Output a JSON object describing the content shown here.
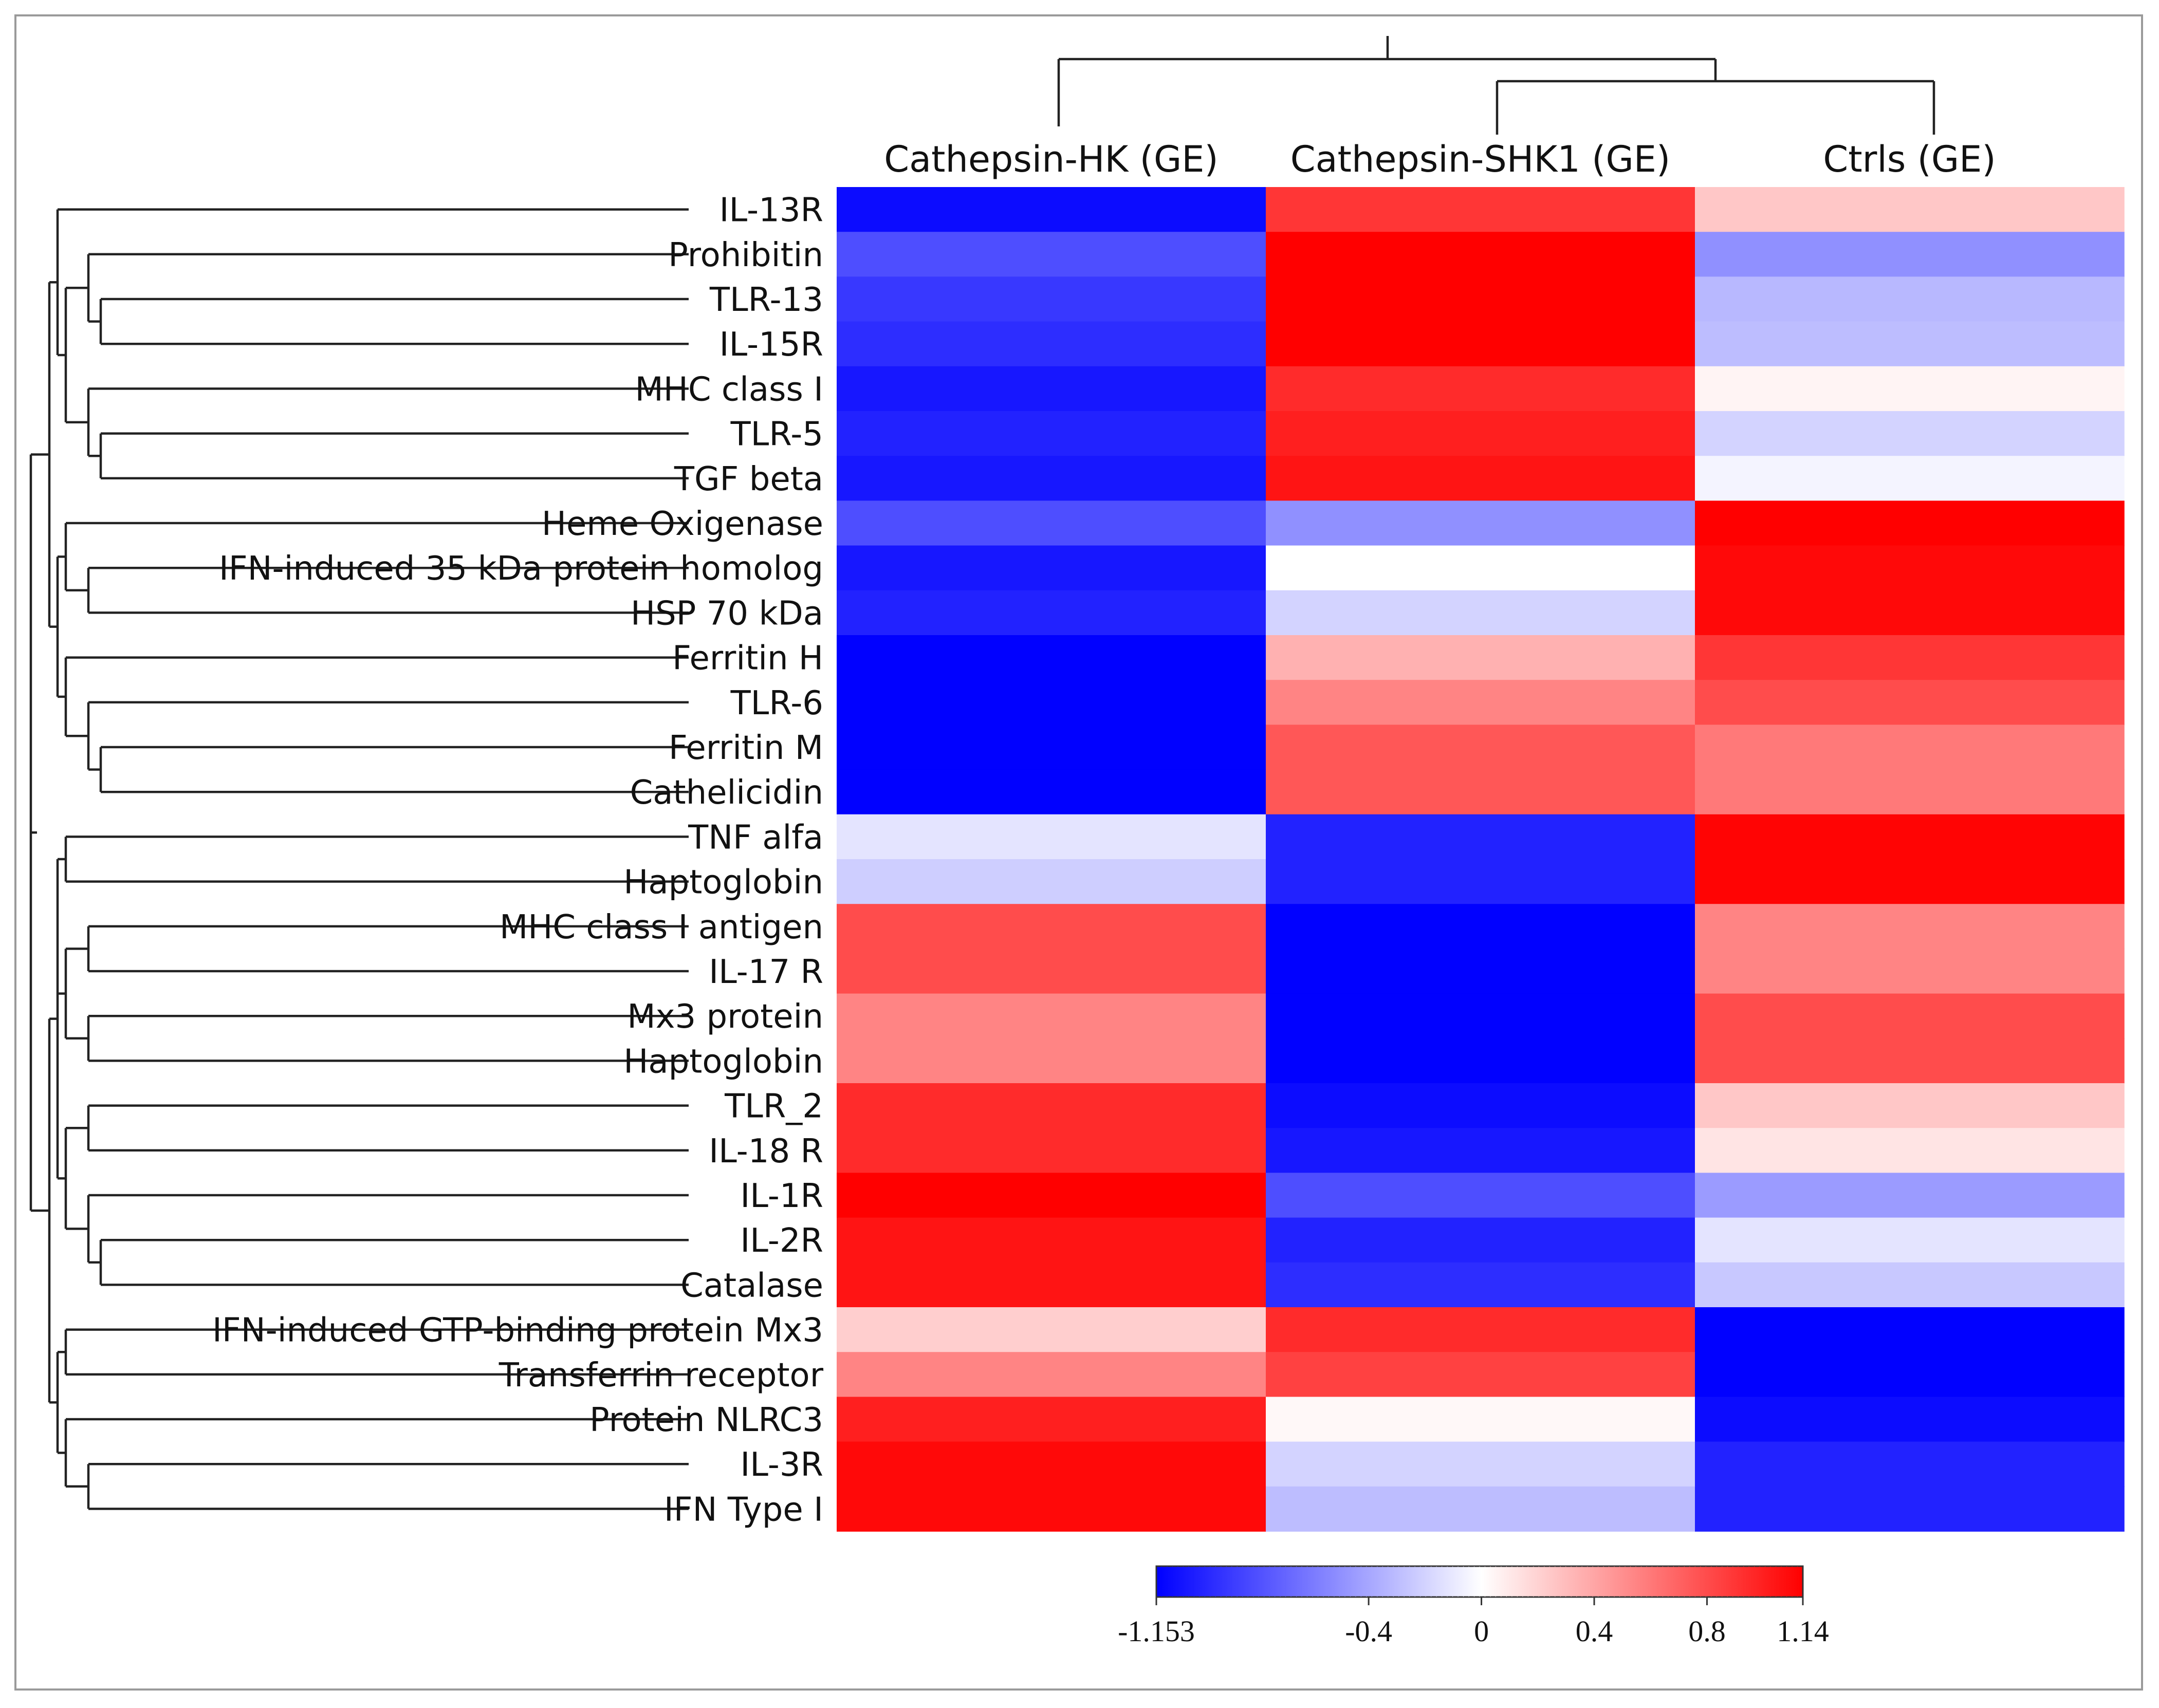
{
  "chart_data": {
    "type": "heatmap",
    "title": "",
    "columns": [
      "Cathepsin-HK (GE)",
      "Cathepsin-SHK1 (GE)",
      "Ctrls (GE)"
    ],
    "rows": [
      "IL-13R",
      "Prohibitin",
      "TLR-13",
      "IL-15R",
      "MHC class I",
      "TLR-5",
      "TGF beta",
      "Heme Oxigenase",
      "IFN-induced 35 kDa protein homolog",
      "HSP 70 kDa",
      "Ferritin H",
      "TLR-6",
      "Ferritin M",
      "Cathelicidin",
      "TNF alfa",
      "Haptoglobin",
      "MHC class I antigen",
      "IL-17 R",
      "Mx3 protein",
      "Haptoglobin",
      "TLR_2",
      "IL-18 R",
      "IL-1R",
      "IL-2R",
      "Catalase",
      "IFN-induced GTP-binding protein Mx3",
      "Transferrin receptor",
      "Protein NLRC3",
      "IL-3R",
      "IFN Type I"
    ],
    "values": [
      [
        -1.1,
        0.9,
        0.25
      ],
      [
        -0.8,
        1.14,
        -0.5
      ],
      [
        -0.9,
        1.14,
        -0.32
      ],
      [
        -0.95,
        1.14,
        -0.3
      ],
      [
        -1.05,
        0.95,
        0.05
      ],
      [
        -1.0,
        1.0,
        -0.2
      ],
      [
        -1.05,
        1.05,
        -0.05
      ],
      [
        -0.8,
        -0.5,
        1.14
      ],
      [
        -1.05,
        0.0,
        1.1
      ],
      [
        -1.0,
        -0.2,
        1.1
      ],
      [
        -1.15,
        0.35,
        0.9
      ],
      [
        -1.15,
        0.55,
        0.8
      ],
      [
        -1.15,
        0.75,
        0.6
      ],
      [
        -1.15,
        0.75,
        0.6
      ],
      [
        -0.12,
        -1.0,
        1.12
      ],
      [
        -0.22,
        -1.0,
        1.12
      ],
      [
        0.8,
        -1.15,
        0.55
      ],
      [
        0.8,
        -1.15,
        0.55
      ],
      [
        0.55,
        -1.15,
        0.8
      ],
      [
        0.55,
        -1.15,
        0.8
      ],
      [
        0.95,
        -1.1,
        0.25
      ],
      [
        0.95,
        -1.05,
        0.12
      ],
      [
        1.14,
        -0.8,
        -0.45
      ],
      [
        1.05,
        -1.0,
        -0.12
      ],
      [
        1.05,
        -0.95,
        -0.25
      ],
      [
        0.22,
        0.95,
        -1.15
      ],
      [
        0.55,
        0.85,
        -1.15
      ],
      [
        1.0,
        0.03,
        -1.1
      ],
      [
        1.1,
        -0.2,
        -1.0
      ],
      [
        1.1,
        -0.3,
        -1.0
      ]
    ],
    "colorbar": {
      "min": -1.153,
      "max": 1.14,
      "ticks": [
        -1.153,
        -0.4,
        0,
        0.4,
        0.8,
        1.14
      ],
      "tick_labels": [
        "-1.153",
        "-0.4",
        "0",
        "0.4",
        "0.8",
        "1.14"
      ],
      "colors": {
        "low": "#0000ff",
        "mid": "#ffffff",
        "high": "#ff0000"
      }
    },
    "row_dendrogram": "((IL-13R,((Prohibitin,(TLR-13,IL-15R)),(MHC class I,(TLR-5,TGF beta)))),((Heme Oxigenase,(IFN-induced 35 kDa protein homolog,HSP 70 kDa)),(Ferritin H,(TLR-6,(Ferritin M,Cathelicidin))))),(((TNF alfa,Haptoglobin),((MHC class I antigen,IL-17 R),(Mx3 protein,Haptoglobin)),((TLR_2,IL-18 R),(IL-1R,(IL-2R,Catalase)))),((IFN-induced GTP-binding protein Mx3,Transferrin receptor),(Protein NLRC3,(IL-3R,IFN Type I))))",
    "column_dendrogram": "(Cathepsin-HK (GE),(Cathepsin-SHK1 (GE),Ctrls (GE)))"
  }
}
